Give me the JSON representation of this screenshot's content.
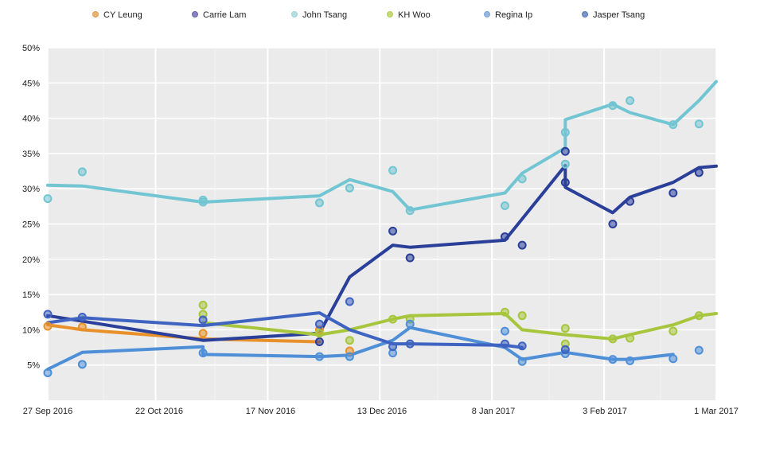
{
  "chart_data": {
    "type": "line",
    "title": "",
    "xlabel": "",
    "ylabel": "",
    "xlim": [
      "2016-09-27",
      "2017-03-01"
    ],
    "ylim": [
      0,
      50
    ],
    "grid": true,
    "legend_position": "top",
    "x_ticks": [
      {
        "date": "2016-09-27",
        "label": "27 Sep 2016"
      },
      {
        "date": "2016-10-22",
        "label": "22 Oct 2016"
      },
      {
        "date": "2016-11-17",
        "label": "17 Nov 2016"
      },
      {
        "date": "2016-12-13",
        "label": "13 Dec 2016"
      },
      {
        "date": "2017-01-08",
        "label": "8 Jan 2017"
      },
      {
        "date": "2017-02-03",
        "label": "3 Feb 2017"
      },
      {
        "date": "2017-03-01",
        "label": "1 Mar 2017"
      }
    ],
    "y_ticks": [
      {
        "value": 5,
        "label": "5%"
      },
      {
        "value": 10,
        "label": "10%"
      },
      {
        "value": 15,
        "label": "15%"
      },
      {
        "value": 20,
        "label": "20%"
      },
      {
        "value": 25,
        "label": "25%"
      },
      {
        "value": 30,
        "label": "30%"
      },
      {
        "value": 35,
        "label": "35%"
      },
      {
        "value": 40,
        "label": "40%"
      },
      {
        "value": 45,
        "label": "45%"
      },
      {
        "value": 50,
        "label": "50%"
      }
    ],
    "series": [
      {
        "name": "CY Leung",
        "color": "#e8912a",
        "legend_color": "#e0a050",
        "line": [
          [
            "2016-09-27",
            10.7
          ],
          [
            "2016-10-05",
            10.0
          ],
          [
            "2016-11-02",
            8.7
          ],
          [
            "2016-11-29",
            8.3
          ]
        ],
        "points": [
          [
            "2016-09-27",
            10.5
          ],
          [
            "2016-10-05",
            10.4
          ],
          [
            "2016-11-02",
            9.5
          ],
          [
            "2016-11-29",
            10.0
          ],
          [
            "2016-12-06",
            7.0
          ]
        ]
      },
      {
        "name": "Carrie Lam",
        "color": "#2a3f9a",
        "legend_color": "#6a64b0",
        "line": [
          [
            "2016-09-27",
            12.0
          ],
          [
            "2016-11-02",
            8.5
          ],
          [
            "2016-11-29",
            9.5
          ],
          [
            "2016-12-06",
            17.5
          ],
          [
            "2016-12-16",
            22.0
          ],
          [
            "2016-12-20",
            21.7
          ],
          [
            "2017-01-11",
            22.7
          ],
          [
            "2017-01-25",
            33.3
          ],
          [
            "2017-01-25",
            30.2
          ],
          [
            "2017-02-05",
            26.6
          ],
          [
            "2017-02-09",
            28.8
          ],
          [
            "2017-02-19",
            30.9
          ],
          [
            "2017-02-25",
            33.0
          ],
          [
            "2017-03-01",
            33.2
          ]
        ],
        "points": [
          [
            "2016-11-29",
            8.3
          ],
          [
            "2016-12-16",
            24.0
          ],
          [
            "2016-12-20",
            20.2
          ],
          [
            "2017-01-11",
            23.2
          ],
          [
            "2017-01-15",
            22.0
          ],
          [
            "2017-01-25",
            35.3
          ],
          [
            "2017-01-25",
            30.9
          ],
          [
            "2017-02-05",
            25.0
          ],
          [
            "2017-02-09",
            28.2
          ],
          [
            "2017-02-19",
            29.4
          ],
          [
            "2017-02-25",
            32.3
          ]
        ]
      },
      {
        "name": "John Tsang",
        "color": "#72c5d2",
        "legend_color": "#9fd6d8",
        "line": [
          [
            "2016-09-27",
            30.5
          ],
          [
            "2016-10-05",
            30.4
          ],
          [
            "2016-11-02",
            28.1
          ],
          [
            "2016-11-29",
            29.0
          ],
          [
            "2016-12-06",
            31.3
          ],
          [
            "2016-12-16",
            29.6
          ],
          [
            "2016-12-20",
            27.0
          ],
          [
            "2017-01-11",
            29.4
          ],
          [
            "2017-01-15",
            32.2
          ],
          [
            "2017-01-25",
            35.8
          ],
          [
            "2017-01-25",
            39.8
          ],
          [
            "2017-02-05",
            42.0
          ],
          [
            "2017-02-09",
            40.8
          ],
          [
            "2017-02-19",
            39.1
          ],
          [
            "2017-02-25",
            42.5
          ],
          [
            "2017-03-01",
            45.2
          ]
        ],
        "points": [
          [
            "2016-09-27",
            28.6
          ],
          [
            "2016-10-05",
            32.4
          ],
          [
            "2016-11-02",
            28.4
          ],
          [
            "2016-11-02",
            28.1
          ],
          [
            "2016-11-29",
            28.0
          ],
          [
            "2016-12-06",
            30.1
          ],
          [
            "2016-12-16",
            32.6
          ],
          [
            "2016-12-20",
            26.9
          ],
          [
            "2017-01-11",
            27.6
          ],
          [
            "2017-01-15",
            31.4
          ],
          [
            "2017-01-25",
            38.0
          ],
          [
            "2017-01-25",
            33.5
          ],
          [
            "2017-02-05",
            41.8
          ],
          [
            "2017-02-09",
            42.5
          ],
          [
            "2017-02-19",
            39.1
          ],
          [
            "2017-02-25",
            39.2
          ]
        ]
      },
      {
        "name": "KH Woo",
        "color": "#a7c63d",
        "legend_color": "#b5cf5a",
        "line": [
          [
            "2016-11-02",
            11.0
          ],
          [
            "2016-11-29",
            9.3
          ],
          [
            "2016-12-06",
            10.0
          ],
          [
            "2016-12-16",
            11.5
          ],
          [
            "2016-12-20",
            12.0
          ],
          [
            "2017-01-11",
            12.3
          ],
          [
            "2017-01-15",
            10.0
          ],
          [
            "2017-01-25",
            9.3
          ],
          [
            "2017-02-05",
            8.7
          ],
          [
            "2017-02-09",
            9.3
          ],
          [
            "2017-02-19",
            10.7
          ],
          [
            "2017-02-25",
            12.0
          ],
          [
            "2017-03-01",
            12.3
          ]
        ],
        "points": [
          [
            "2016-11-02",
            13.5
          ],
          [
            "2016-11-02",
            12.2
          ],
          [
            "2016-11-29",
            9.5
          ],
          [
            "2016-12-06",
            8.5
          ],
          [
            "2016-12-16",
            11.5
          ],
          [
            "2016-12-20",
            11.5
          ],
          [
            "2017-01-11",
            12.5
          ],
          [
            "2017-01-15",
            12.0
          ],
          [
            "2017-01-25",
            10.2
          ],
          [
            "2017-01-25",
            8.0
          ],
          [
            "2017-02-05",
            8.7
          ],
          [
            "2017-02-09",
            8.8
          ],
          [
            "2017-02-19",
            9.8
          ],
          [
            "2017-02-25",
            12.0
          ]
        ]
      },
      {
        "name": "Regina Ip",
        "color": "#4f8fd8",
        "legend_color": "#7aa6d8",
        "line": [
          [
            "2016-09-27",
            4.4
          ],
          [
            "2016-10-05",
            6.8
          ],
          [
            "2016-11-02",
            7.6
          ],
          [
            "2016-11-02",
            6.5
          ],
          [
            "2016-11-29",
            6.2
          ],
          [
            "2016-12-06",
            6.4
          ],
          [
            "2016-12-16",
            8.5
          ],
          [
            "2016-12-20",
            10.3
          ],
          [
            "2017-01-11",
            7.5
          ],
          [
            "2017-01-15",
            5.8
          ],
          [
            "2017-01-25",
            6.8
          ],
          [
            "2017-02-05",
            5.8
          ],
          [
            "2017-02-09",
            5.8
          ],
          [
            "2017-02-19",
            6.5
          ]
        ],
        "points": [
          [
            "2016-09-27",
            3.9
          ],
          [
            "2016-10-05",
            5.1
          ],
          [
            "2016-11-02",
            6.7
          ],
          [
            "2016-11-29",
            6.2
          ],
          [
            "2016-12-06",
            6.2
          ],
          [
            "2016-12-16",
            6.7
          ],
          [
            "2016-12-20",
            10.8
          ],
          [
            "2017-01-11",
            9.8
          ],
          [
            "2017-01-15",
            5.5
          ],
          [
            "2017-01-25",
            6.6
          ],
          [
            "2017-02-05",
            5.8
          ],
          [
            "2017-02-09",
            5.6
          ],
          [
            "2017-02-19",
            5.9
          ],
          [
            "2017-02-25",
            7.1
          ]
        ]
      },
      {
        "name": "Jasper Tsang",
        "color": "#3e63c0",
        "legend_color": "#5a78b8",
        "line": [
          [
            "2016-09-27",
            11.0
          ],
          [
            "2016-10-05",
            11.7
          ],
          [
            "2016-11-02",
            10.6
          ],
          [
            "2016-11-29",
            12.4
          ],
          [
            "2016-12-06",
            10.0
          ],
          [
            "2016-12-16",
            8.0
          ],
          [
            "2016-12-20",
            8.0
          ],
          [
            "2017-01-11",
            7.8
          ],
          [
            "2017-01-15",
            7.5
          ]
        ],
        "points": [
          [
            "2016-09-27",
            12.2
          ],
          [
            "2016-10-05",
            11.8
          ],
          [
            "2016-11-02",
            11.4
          ],
          [
            "2016-11-29",
            10.8
          ],
          [
            "2016-12-06",
            14.0
          ],
          [
            "2016-12-16",
            7.6
          ],
          [
            "2016-12-20",
            8.0
          ],
          [
            "2017-01-11",
            8.0
          ],
          [
            "2017-01-15",
            7.7
          ],
          [
            "2017-01-25",
            7.2
          ]
        ]
      }
    ]
  }
}
